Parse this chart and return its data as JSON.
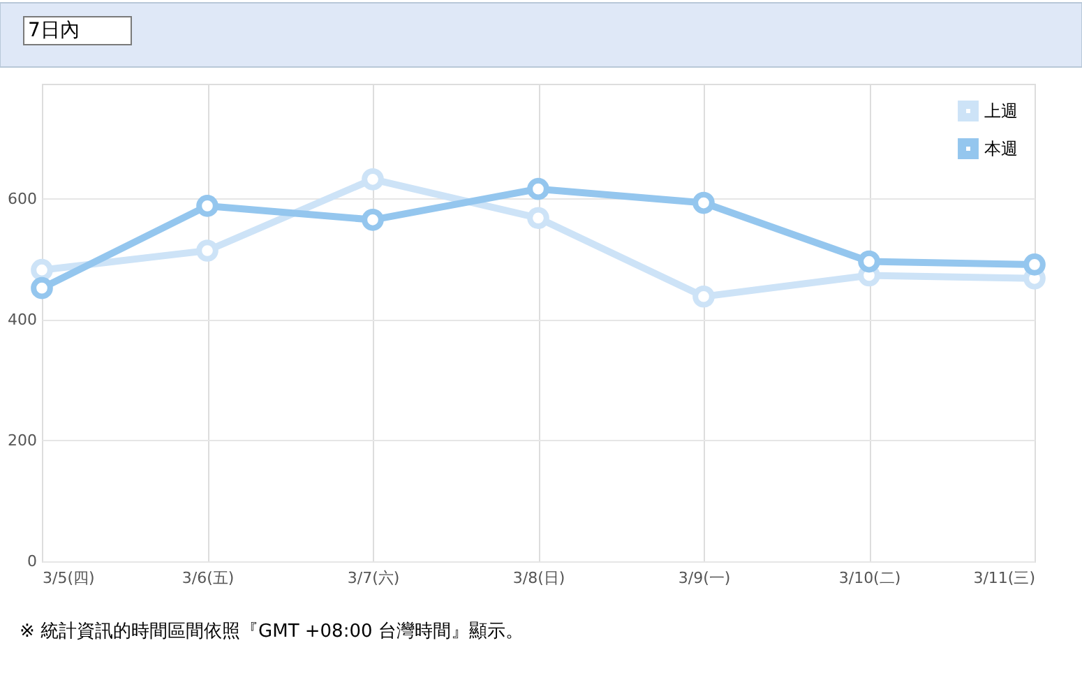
{
  "chart_data": {
    "type": "line",
    "categories": [
      "3/5(四)",
      "3/6(五)",
      "3/7(六)",
      "3/8(日)",
      "3/9(一)",
      "3/10(二)",
      "3/11(三)"
    ],
    "series": [
      {
        "name": "上週",
        "color": "#cde3f7",
        "values": [
          482,
          514,
          632,
          568,
          438,
          473,
          468
        ]
      },
      {
        "name": "本週",
        "color": "#94c6ee",
        "values": [
          452,
          588,
          565,
          616,
          593,
          496,
          491
        ]
      }
    ],
    "ylim": [
      0,
      790
    ],
    "yticks": [
      0,
      200,
      400,
      600
    ],
    "grid": true,
    "legend": "top right",
    "marker": "circle",
    "line_style": "solid",
    "annotations": [
      "7日內",
      "※ 統計資訊的時間區間依照『GMT +08:00 台灣時間』顯示。"
    ]
  }
}
